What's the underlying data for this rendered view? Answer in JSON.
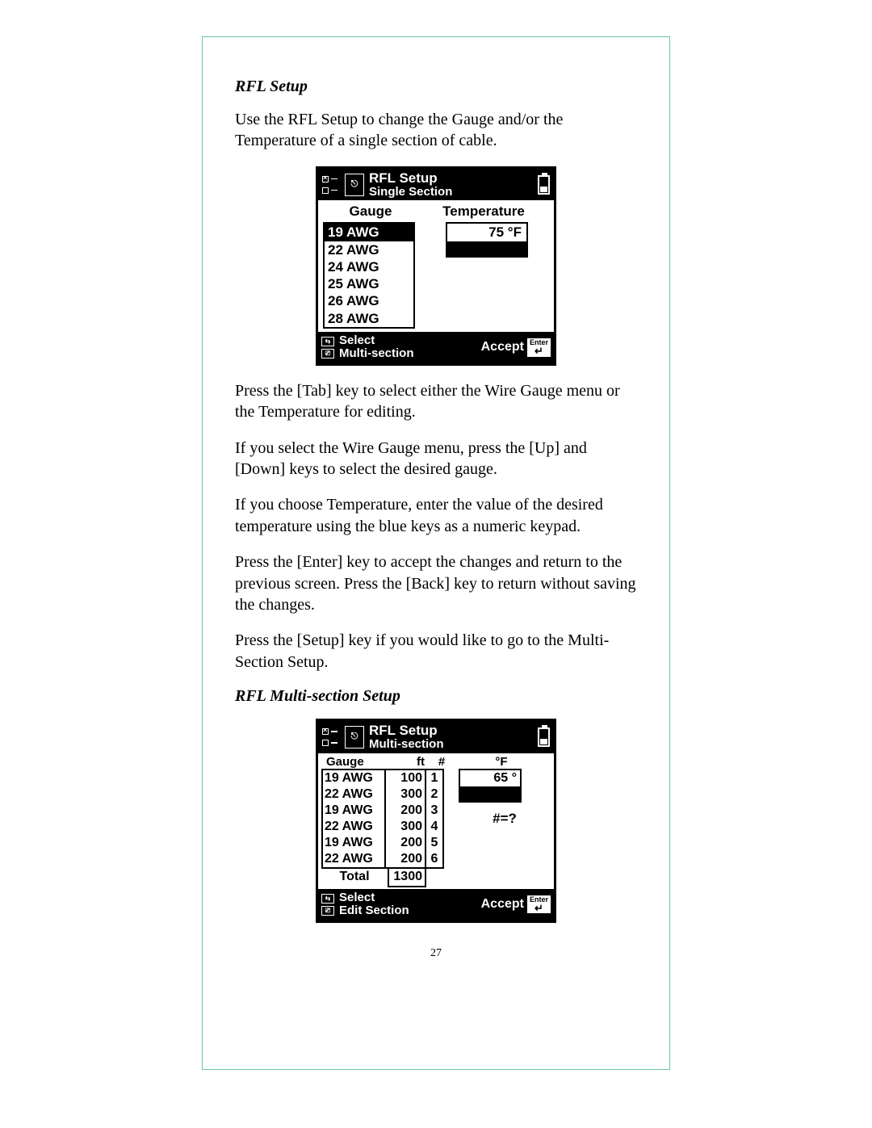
{
  "page_number": "27",
  "section1": {
    "heading": "RFL Setup",
    "intro": "Use the RFL Setup to change the Gauge and/or the Temperature of a single section of cable.",
    "para1": "Press the [Tab] key to select either the Wire Gauge menu or the Temperature for editing.",
    "para2": "If you select the Wire Gauge menu, press the [Up] and [Down] keys to select the desired gauge.",
    "para3": "If you choose Temperature, enter the value of the desired temperature using the blue keys as a numeric keypad.",
    "para4": "Press the [Enter] key to accept the changes and return to the previous screen. Press the [Back] key to return without saving the changes.",
    "para5": "Press the [Setup] key if you would like to go to the Multi-Section Setup."
  },
  "section2": {
    "heading": "RFL Multi-section Setup"
  },
  "lcd1": {
    "title1": "RFL Setup",
    "title2": "Single Section",
    "gauge_label": "Gauge",
    "temp_label": "Temperature",
    "gauges": [
      "19 AWG",
      "22 AWG",
      "24 AWG",
      "25 AWG",
      "26 AWG",
      "28 AWG"
    ],
    "selected_index": 0,
    "temp_value": "75 °F",
    "footer_left1": "Select",
    "footer_left2": "Multi-section",
    "footer_accept": "Accept",
    "enter_label": "Enter"
  },
  "lcd2": {
    "title1": "RFL Setup",
    "title2": "Multi-section",
    "h_gauge": "Gauge",
    "h_ft": "ft",
    "h_num": "#",
    "h_f": "°F",
    "rows": [
      {
        "g": "19 AWG",
        "ft": "100",
        "n": "1"
      },
      {
        "g": "22 AWG",
        "ft": "300",
        "n": "2"
      },
      {
        "g": "19 AWG",
        "ft": "200",
        "n": "3"
      },
      {
        "g": "22 AWG",
        "ft": "300",
        "n": "4"
      },
      {
        "g": "19 AWG",
        "ft": "200",
        "n": "5"
      },
      {
        "g": "22 AWG",
        "ft": "200",
        "n": "6"
      }
    ],
    "total_label": "Total",
    "total_value": "1300",
    "temp_value": "65 °",
    "hint": "#=?",
    "footer_left1": "Select",
    "footer_left2": "Edit Section",
    "footer_accept": "Accept",
    "enter_label": "Enter"
  }
}
